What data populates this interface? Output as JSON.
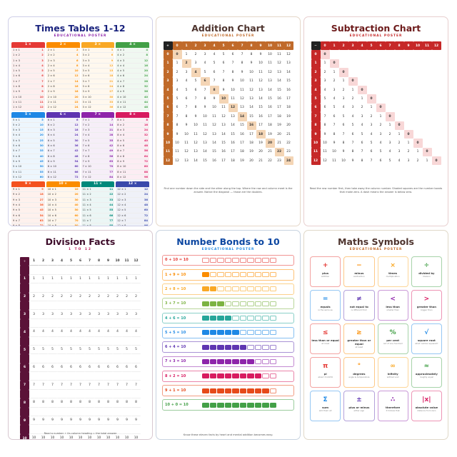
{
  "times_tables": {
    "title": "Times Tables 1-12",
    "subtitle": "EDUCATIONAL POSTER",
    "colors": [
      "#e53935",
      "#fb8c00",
      "#f9a825",
      "#43a047",
      "#1e88e5",
      "#5e35b1",
      "#8e24aa",
      "#d81b60",
      "#f4511e",
      "#fb8c00",
      "#00897b",
      "#3949ab"
    ]
  },
  "addition": {
    "title": "Addition Chart",
    "subtitle": "EDUCATIONAL POSTER",
    "footer": "Find one number down the side and the other along the top. Where the row and column meet is the answer. Notice the diagonal — those are the doubles.",
    "corner": "+",
    "colors": {
      "title": "#4e342e",
      "header": "#c06a2a",
      "diag": "#f4d5b5"
    }
  },
  "subtraction": {
    "title": "Subtraction Chart",
    "subtitle": "EDUCATIONAL POSTER",
    "footer": "Read the row number first, then take away the column number. Shaded squares are the number bonds that make zero. A dash means the answer is below zero.",
    "corner": "−",
    "colors": {
      "title": "#6d1b1b",
      "header": "#c62828",
      "diag": "#f8d7d7"
    }
  },
  "division": {
    "title": "Division Facts",
    "subtitle": "1 TO 12",
    "footer": "Read a number ÷ its column heading = the total answer",
    "corner": "÷",
    "colors": {
      "title": "#3d0c2a",
      "header": "#5b1238"
    }
  },
  "bonds": {
    "title": "Number Bonds to 10",
    "subtitle": "EDUCATIONAL POSTER",
    "footer": "Know these eleven facts by heart and mental addition becomes easy.",
    "rows": [
      {
        "label": "0 + 10 = 10",
        "a": 0,
        "color": "#e53935"
      },
      {
        "label": "1 + 9 = 10",
        "a": 1,
        "color": "#fb8c00"
      },
      {
        "label": "2 + 8 = 10",
        "a": 2,
        "color": "#f9a825"
      },
      {
        "label": "3 + 7 = 10",
        "a": 3,
        "color": "#7cb342"
      },
      {
        "label": "4 + 6 = 10",
        "a": 4,
        "color": "#26a69a"
      },
      {
        "label": "5 + 5 = 10",
        "a": 5,
        "color": "#1e88e5"
      },
      {
        "label": "6 + 4 = 10",
        "a": 6,
        "color": "#5e35b1"
      },
      {
        "label": "7 + 3 = 10",
        "a": 7,
        "color": "#8e24aa"
      },
      {
        "label": "8 + 2 = 10",
        "a": 8,
        "color": "#d81b60"
      },
      {
        "label": "9 + 1 = 10",
        "a": 9,
        "color": "#e64a19"
      },
      {
        "label": "10 + 0 = 10",
        "a": 10,
        "color": "#43a047"
      }
    ]
  },
  "symbols": {
    "title": "Maths Symbols",
    "subtitle": "EDUCATIONAL POSTER",
    "cards": [
      {
        "glyph": "+",
        "name": "plus",
        "desc": "addition",
        "color": "#e53935"
      },
      {
        "glyph": "−",
        "name": "minus",
        "desc": "subtraction",
        "color": "#fb8c00"
      },
      {
        "glyph": "×",
        "name": "times",
        "desc": "multiplication",
        "color": "#f9a825"
      },
      {
        "glyph": "÷",
        "name": "divided by",
        "desc": "division",
        "color": "#43a047"
      },
      {
        "glyph": "=",
        "name": "equals",
        "desc": "is the same as",
        "color": "#1e88e5"
      },
      {
        "glyph": "≠",
        "name": "not equal to",
        "desc": "is different from",
        "color": "#5e35b1"
      },
      {
        "glyph": "<",
        "name": "less than",
        "desc": "smaller than",
        "color": "#8e24aa"
      },
      {
        "glyph": ">",
        "name": "greater than",
        "desc": "bigger than",
        "color": "#d81b60"
      },
      {
        "glyph": "≤",
        "name": "less than or equal",
        "desc": "at most",
        "color": "#e53935"
      },
      {
        "glyph": "≥",
        "name": "greater than or equal",
        "desc": "at least",
        "color": "#fb8c00"
      },
      {
        "glyph": "%",
        "name": "per cent",
        "desc": "out of one hundred",
        "color": "#43a047"
      },
      {
        "glyph": "√",
        "name": "square root",
        "desc": "what number squared?",
        "color": "#1e88e5"
      },
      {
        "glyph": "π",
        "name": "pi",
        "desc": "about 3.14159",
        "color": "#e53935"
      },
      {
        "glyph": "°",
        "name": "degrees",
        "desc": "angle & temperature",
        "color": "#fb8c00"
      },
      {
        "glyph": "∞",
        "name": "infinity",
        "desc": "without end",
        "color": "#f9a825"
      },
      {
        "glyph": "≈",
        "name": "approximately",
        "desc": "roughly equal",
        "color": "#43a047"
      },
      {
        "glyph": "Σ",
        "name": "sum",
        "desc": "add them all",
        "color": "#1e88e5"
      },
      {
        "glyph": "±",
        "name": "plus or minus",
        "desc": "either sign",
        "color": "#5e35b1"
      },
      {
        "glyph": "∴",
        "name": "therefore",
        "desc": "it follows that",
        "color": "#8e24aa"
      },
      {
        "glyph": "|x|",
        "name": "absolute value",
        "desc": "distance from zero",
        "color": "#d81b60"
      }
    ]
  }
}
